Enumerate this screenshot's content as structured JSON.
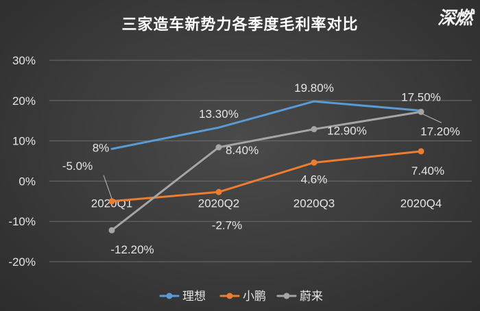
{
  "title": "三家造车新势力各季度毛利率对比",
  "logo": "深燃",
  "colors": {
    "background": "#3a3a3a",
    "grid": "#6e6e6e",
    "text": "#e6e6e6"
  },
  "chart_data": {
    "type": "line",
    "title": "三家造车新势力各季度毛利率对比",
    "categories": [
      "2020Q1",
      "2020Q2",
      "2020Q3",
      "2020Q4"
    ],
    "y_ticks": [
      "30%",
      "20%",
      "10%",
      "0%",
      "-10%",
      "-20%"
    ],
    "ylim": [
      -20,
      30
    ],
    "y_unit": "%",
    "grid": true,
    "legend_position": "bottom",
    "series": [
      {
        "name": "理想",
        "color": "#5b9bd5",
        "values": [
          8.0,
          13.3,
          19.8,
          17.5
        ],
        "labels": [
          "8%",
          "13.30%",
          "19.80%",
          "17.50%"
        ],
        "markers": false
      },
      {
        "name": "小鹏",
        "color": "#ed7d31",
        "values": [
          -5.0,
          -2.7,
          4.6,
          7.4
        ],
        "labels": [
          "-5.0%",
          "-2.7%",
          "4.6%",
          "7.40%"
        ],
        "markers": true
      },
      {
        "name": "蔚来",
        "color": "#a5a5a5",
        "values": [
          -12.2,
          8.4,
          12.9,
          17.2
        ],
        "labels": [
          "-12.20%",
          "8.40%",
          "12.90%",
          "17.20%"
        ],
        "markers": true
      }
    ]
  }
}
